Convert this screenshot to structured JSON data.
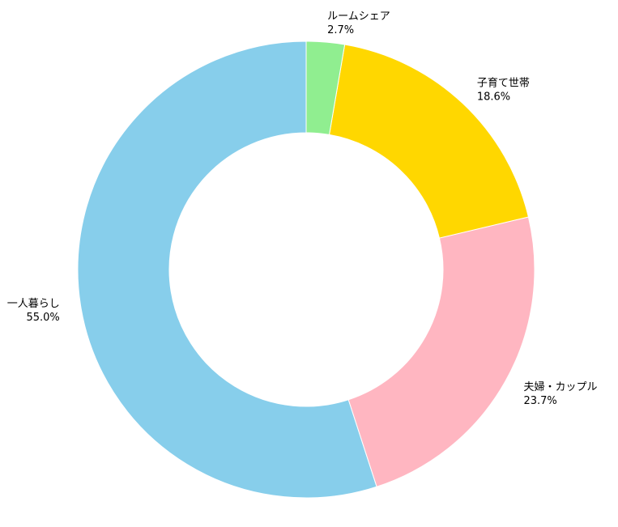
{
  "chart_data": {
    "type": "pie",
    "donut": true,
    "title": "",
    "start_angle_deg": 90,
    "direction": "counterclockwise",
    "slices": [
      {
        "label": "一人暮らし",
        "value": 55.0,
        "pct_label": "55.0%",
        "color": "#87CEEB"
      },
      {
        "label": "夫婦・カップル",
        "value": 23.7,
        "pct_label": "23.7%",
        "color": "#FFB6C1"
      },
      {
        "label": "子育て世帯",
        "value": 18.6,
        "pct_label": "18.6%",
        "color": "#FFD700"
      },
      {
        "label": "ルームシェア",
        "value": 2.7,
        "pct_label": "2.7%",
        "color": "#90EE90"
      }
    ]
  }
}
